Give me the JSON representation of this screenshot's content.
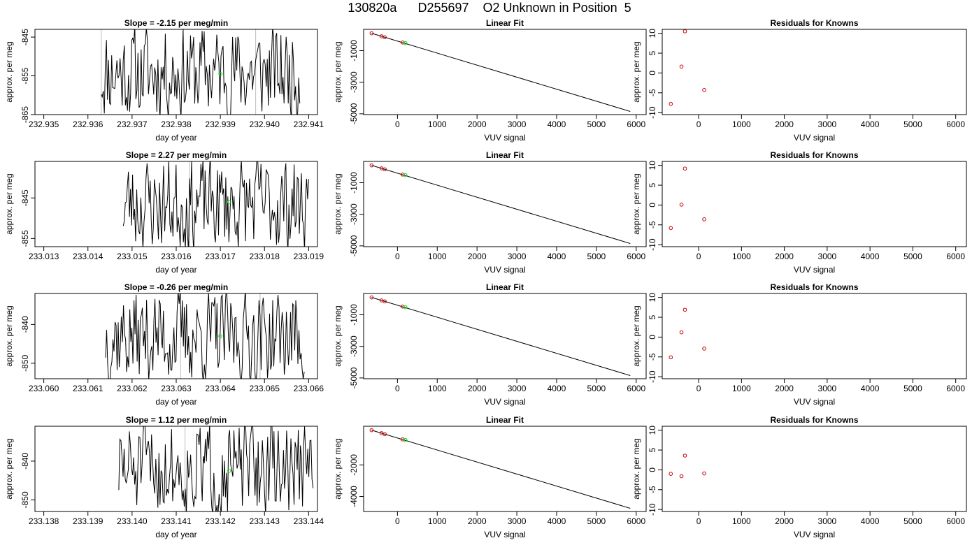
{
  "figure": {
    "title": "130820a      D255697    O2 Unknown in Position  5"
  },
  "colors": {
    "line": "#000000",
    "known_points": "#cc0000",
    "unknown_point": "#00dd00",
    "sample_boundary": "#bbbbbb"
  },
  "chart_data": [
    {
      "type": "line",
      "title": "Slope =  -2.15  per meg/min",
      "xlabel": "day of year",
      "ylabel": "approx. per meg",
      "xlim": [
        232.9348,
        232.9412
      ],
      "ylim": [
        -865,
        -843
      ],
      "xticks": [
        232.935,
        232.936,
        232.937,
        232.938,
        232.939,
        232.94,
        232.941
      ],
      "xtick_labels": [
        "232.935",
        "232.936",
        "232.937",
        "232.938",
        "232.939",
        "232.940",
        "232.941"
      ],
      "yticks": [
        -845,
        -855,
        -865
      ],
      "ytick_labels": [
        "-845",
        "-855",
        "-865"
      ],
      "x_start": 232.9363,
      "x_end": 232.9408,
      "n_points": 190,
      "seed": 11,
      "boundaries": [
        232.9363,
        232.9398
      ],
      "unknown_point": {
        "x": 232.939,
        "y": -854.5
      }
    },
    {
      "type": "scatter",
      "title": "Linear Fit",
      "xlabel": "VUV signal",
      "ylabel": "approx. per meg",
      "xlim": [
        -850,
        6250
      ],
      "ylim": [
        -5050,
        350
      ],
      "xticks": [
        0,
        1000,
        2000,
        3000,
        4000,
        5000,
        6000
      ],
      "xtick_labels": [
        "0",
        "1000",
        "2000",
        "3000",
        "4000",
        "5000",
        "6000"
      ],
      "yticks": [
        -1000,
        -3000,
        -5000
      ],
      "ytick_labels": [
        "-1000",
        "-3000",
        "-5000"
      ],
      "fit_line": {
        "x": [
          -650,
          5850
        ],
        "y": [
          100,
          -4850
        ]
      },
      "known_points": [
        {
          "x": -650,
          "y": 100
        },
        {
          "x": -400,
          "y": -90
        },
        {
          "x": -320,
          "y": -150
        },
        {
          "x": 130,
          "y": -480
        }
      ],
      "unknown_point": {
        "x": 200,
        "y": -520
      }
    },
    {
      "type": "scatter",
      "title": "Residuals for Knowns",
      "xlabel": "VUV signal",
      "ylabel": "approx. per meg",
      "xlim": [
        -850,
        6250
      ],
      "ylim": [
        -10.5,
        11
      ],
      "xticks": [
        0,
        1000,
        2000,
        3000,
        4000,
        5000,
        6000
      ],
      "xtick_labels": [
        "0",
        "1000",
        "2000",
        "3000",
        "4000",
        "5000",
        "6000"
      ],
      "yticks": [
        10,
        5,
        0,
        -5,
        -10
      ],
      "ytick_labels": [
        "10",
        "5",
        "0",
        "-5",
        "-10"
      ],
      "known_points": [
        {
          "x": -650,
          "y": -7.8
        },
        {
          "x": -400,
          "y": 1.6
        },
        {
          "x": -320,
          "y": 10.5
        },
        {
          "x": 130,
          "y": -4.3
        }
      ]
    },
    {
      "type": "line",
      "title": "Slope =  2.27  per meg/min",
      "xlabel": "day of year",
      "ylabel": "approx. per meg",
      "xlim": [
        233.0128,
        233.0192
      ],
      "ylim": [
        -857,
        -836
      ],
      "xticks": [
        233.013,
        233.014,
        233.015,
        233.016,
        233.017,
        233.018,
        233.019
      ],
      "xtick_labels": [
        "233.013",
        "233.014",
        "233.015",
        "233.016",
        "233.017",
        "233.018",
        "233.019"
      ],
      "yticks": [
        -845,
        -855
      ],
      "ytick_labels": [
        "-845",
        "-855"
      ],
      "x_start": 233.0148,
      "x_end": 233.019,
      "n_points": 180,
      "seed": 23,
      "boundaries": [
        233.0163
      ],
      "unknown_point": {
        "x": 233.0172,
        "y": -846
      }
    },
    {
      "type": "scatter",
      "title": "Linear Fit",
      "xlabel": "VUV signal",
      "ylabel": "approx. per meg",
      "xlim": [
        -850,
        6250
      ],
      "ylim": [
        -5050,
        350
      ],
      "xticks": [
        0,
        1000,
        2000,
        3000,
        4000,
        5000,
        6000
      ],
      "xtick_labels": [
        "0",
        "1000",
        "2000",
        "3000",
        "4000",
        "5000",
        "6000"
      ],
      "yticks": [
        -1000,
        -3000,
        -5000
      ],
      "ytick_labels": [
        "-1000",
        "-3000",
        "-5000"
      ],
      "fit_line": {
        "x": [
          -650,
          5850
        ],
        "y": [
          100,
          -4850
        ]
      },
      "known_points": [
        {
          "x": -650,
          "y": 100
        },
        {
          "x": -400,
          "y": -90
        },
        {
          "x": -320,
          "y": -150
        },
        {
          "x": 130,
          "y": -480
        }
      ],
      "unknown_point": {
        "x": 200,
        "y": -520
      }
    },
    {
      "type": "scatter",
      "title": "Residuals for Knowns",
      "xlabel": "VUV signal",
      "ylabel": "approx. per meg",
      "xlim": [
        -850,
        6250
      ],
      "ylim": [
        -10.5,
        11
      ],
      "xticks": [
        0,
        1000,
        2000,
        3000,
        4000,
        5000,
        6000
      ],
      "xtick_labels": [
        "0",
        "1000",
        "2000",
        "3000",
        "4000",
        "5000",
        "6000"
      ],
      "yticks": [
        10,
        5,
        0,
        -5,
        -10
      ],
      "ytick_labels": [
        "10",
        "5",
        "0",
        "-5",
        "-10"
      ],
      "known_points": [
        {
          "x": -650,
          "y": -5.8
        },
        {
          "x": -400,
          "y": 0.1
        },
        {
          "x": -320,
          "y": 9.2
        },
        {
          "x": 130,
          "y": -3.6
        }
      ]
    },
    {
      "type": "line",
      "title": "Slope =  -0.26  per meg/min",
      "xlabel": "day of year",
      "ylabel": "approx. per meg",
      "xlim": [
        233.0598,
        233.0662
      ],
      "ylim": [
        -854,
        -832
      ],
      "xticks": [
        233.06,
        233.061,
        233.062,
        233.063,
        233.064,
        233.065,
        233.066
      ],
      "xtick_labels": [
        "233.060",
        "233.061",
        "233.062",
        "233.063",
        "233.064",
        "233.065",
        "233.066"
      ],
      "yticks": [
        -840,
        -850
      ],
      "ytick_labels": [
        "-840",
        "-850"
      ],
      "x_start": 233.0614,
      "x_end": 233.0659,
      "n_points": 190,
      "seed": 37,
      "boundaries": [
        233.0631,
        233.0649
      ],
      "unknown_point": {
        "x": 233.064,
        "y": -843
      }
    },
    {
      "type": "scatter",
      "title": "Linear Fit",
      "xlabel": "VUV signal",
      "ylabel": "approx. per meg",
      "xlim": [
        -850,
        6250
      ],
      "ylim": [
        -5050,
        350
      ],
      "xticks": [
        0,
        1000,
        2000,
        3000,
        4000,
        5000,
        6000
      ],
      "xtick_labels": [
        "0",
        "1000",
        "2000",
        "3000",
        "4000",
        "5000",
        "6000"
      ],
      "yticks": [
        -1000,
        -3000,
        -5000
      ],
      "ytick_labels": [
        "-1000",
        "-3000",
        "-5000"
      ],
      "fit_line": {
        "x": [
          -650,
          5850
        ],
        "y": [
          100,
          -4850
        ]
      },
      "known_points": [
        {
          "x": -650,
          "y": 100
        },
        {
          "x": -400,
          "y": -90
        },
        {
          "x": -320,
          "y": -150
        },
        {
          "x": 130,
          "y": -480
        }
      ],
      "unknown_point": {
        "x": 200,
        "y": -520
      }
    },
    {
      "type": "scatter",
      "title": "Residuals for Knowns",
      "xlabel": "VUV signal",
      "ylabel": "approx. per meg",
      "xlim": [
        -850,
        6250
      ],
      "ylim": [
        -10.5,
        11
      ],
      "xticks": [
        0,
        1000,
        2000,
        3000,
        4000,
        5000,
        6000
      ],
      "xtick_labels": [
        "0",
        "1000",
        "2000",
        "3000",
        "4000",
        "5000",
        "6000"
      ],
      "yticks": [
        10,
        5,
        0,
        -5,
        -10
      ],
      "ytick_labels": [
        "10",
        "5",
        "0",
        "-5",
        "-10"
      ],
      "known_points": [
        {
          "x": -650,
          "y": -5.1
        },
        {
          "x": -400,
          "y": 1.2
        },
        {
          "x": -320,
          "y": 6.9
        },
        {
          "x": 130,
          "y": -2.9
        }
      ]
    },
    {
      "type": "line",
      "title": "Slope =  1.12  per meg/min",
      "xlabel": "day of year",
      "ylabel": "approx. per meg",
      "xlim": [
        233.1378,
        233.1442
      ],
      "ylim": [
        -853,
        -831
      ],
      "xticks": [
        233.138,
        233.139,
        233.14,
        233.141,
        233.142,
        233.143,
        233.144
      ],
      "xtick_labels": [
        "233.138",
        "233.139",
        "233.140",
        "233.141",
        "233.142",
        "233.143",
        "233.144"
      ],
      "yticks": [
        -840,
        -850
      ],
      "ytick_labels": [
        "-840",
        "-850"
      ],
      "x_start": 233.1397,
      "x_end": 233.1441,
      "n_points": 185,
      "seed": 51,
      "boundaries": [
        233.1412
      ],
      "unknown_point": {
        "x": 233.1422,
        "y": -842.5
      }
    },
    {
      "type": "scatter",
      "title": "Linear Fit",
      "xlabel": "VUV signal",
      "ylabel": "approx. per meg",
      "xlim": [
        -850,
        6250
      ],
      "ylim": [
        -4950,
        450
      ],
      "xticks": [
        0,
        1000,
        2000,
        3000,
        4000,
        5000,
        6000
      ],
      "xtick_labels": [
        "0",
        "1000",
        "2000",
        "3000",
        "4000",
        "5000",
        "6000"
      ],
      "yticks": [
        -2000,
        -4000
      ],
      "ytick_labels": [
        "-2000",
        "-4000"
      ],
      "fit_line": {
        "x": [
          -650,
          5850
        ],
        "y": [
          200,
          -4750
        ]
      },
      "known_points": [
        {
          "x": -650,
          "y": 200
        },
        {
          "x": -400,
          "y": 10
        },
        {
          "x": -320,
          "y": -50
        },
        {
          "x": 130,
          "y": -380
        }
      ],
      "unknown_point": {
        "x": 200,
        "y": -420
      }
    },
    {
      "type": "scatter",
      "title": "Residuals for Knowns",
      "xlabel": "VUV signal",
      "ylabel": "approx. per meg",
      "xlim": [
        -850,
        6250
      ],
      "ylim": [
        -10.5,
        11
      ],
      "xticks": [
        0,
        1000,
        2000,
        3000,
        4000,
        5000,
        6000
      ],
      "xtick_labels": [
        "0",
        "1000",
        "2000",
        "3000",
        "4000",
        "5000",
        "6000"
      ],
      "yticks": [
        10,
        5,
        0,
        -5,
        -10
      ],
      "ytick_labels": [
        "10",
        "5",
        "0",
        "-5",
        "-10"
      ],
      "known_points": [
        {
          "x": -650,
          "y": -1.0
        },
        {
          "x": -400,
          "y": -1.6
        },
        {
          "x": -320,
          "y": 3.6
        },
        {
          "x": 130,
          "y": -0.9
        }
      ]
    }
  ]
}
